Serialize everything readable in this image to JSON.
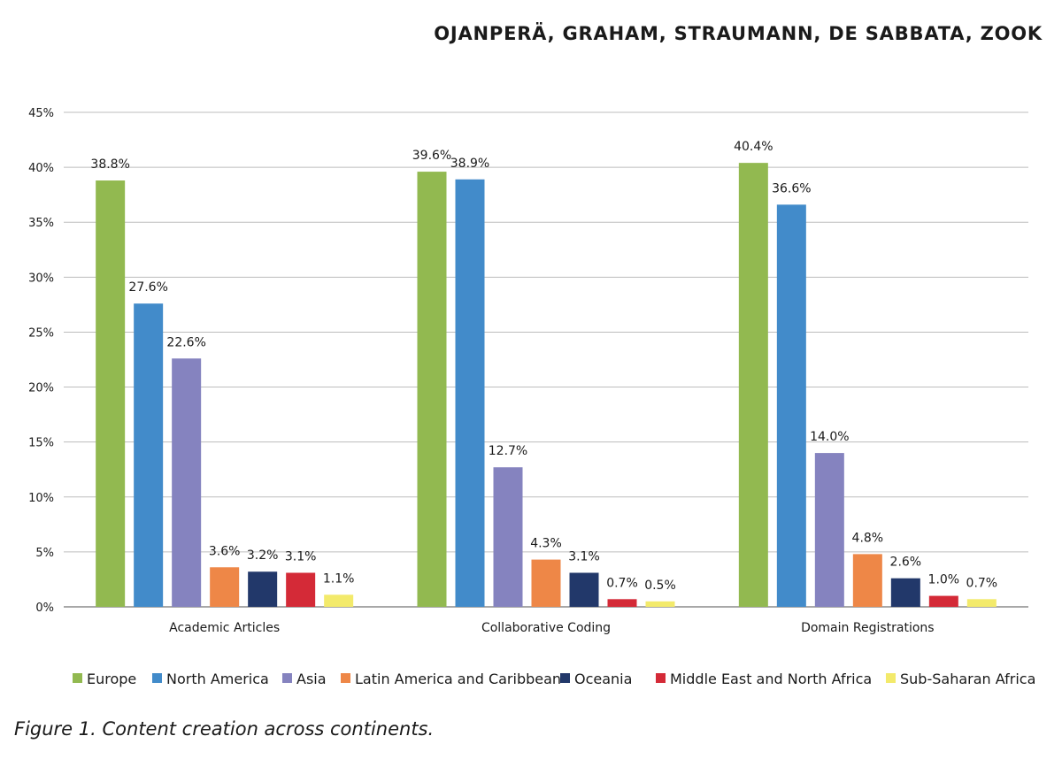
{
  "header": {
    "authors": "OJANPERÄ, GRAHAM, STRAUMANN, DE SABBATA, ZOOK"
  },
  "caption": "Figure 1.  Content creation across continents.",
  "chart_data": {
    "type": "bar",
    "categories": [
      "Academic Articles",
      "Collaborative Coding",
      "Domain Registrations"
    ],
    "y_ticks": [
      "0%",
      "5%",
      "10%",
      "15%",
      "20%",
      "25%",
      "30%",
      "35%",
      "40%",
      "45%"
    ],
    "ylim": [
      0,
      45
    ],
    "grid": true,
    "legend_position": "bottom",
    "series": [
      {
        "name": "Europe",
        "color": "#92b950",
        "values": [
          38.8,
          39.6,
          40.4
        ],
        "labels": [
          "38.8%",
          "39.6%",
          "40.4%"
        ]
      },
      {
        "name": "North America",
        "color": "#428bca",
        "values": [
          27.6,
          38.9,
          36.6
        ],
        "labels": [
          "27.6%",
          "38.9%",
          "36.6%"
        ]
      },
      {
        "name": "Asia",
        "color": "#8583bf",
        "values": [
          22.6,
          12.7,
          14.0
        ],
        "labels": [
          "22.6%",
          "12.7%",
          "14.0%"
        ]
      },
      {
        "name": "Latin America and Caribbean",
        "color": "#ee8747",
        "values": [
          3.6,
          4.3,
          4.8
        ],
        "labels": [
          "3.6%",
          "4.3%",
          "4.8%"
        ]
      },
      {
        "name": "Oceania",
        "color": "#22386a",
        "values": [
          3.2,
          3.1,
          2.6
        ],
        "labels": [
          "3.2%",
          "3.1%",
          "2.6%"
        ]
      },
      {
        "name": "Middle East and North Africa",
        "color": "#d42a37",
        "values": [
          3.1,
          0.7,
          1.0
        ],
        "labels": [
          "3.1%",
          "0.7%",
          "1.0%"
        ]
      },
      {
        "name": "Sub-Saharan Africa",
        "color": "#f3ea6b",
        "values": [
          1.1,
          0.5,
          0.7
        ],
        "labels": [
          "1.1%",
          "0.5%",
          "0.7%"
        ]
      }
    ]
  }
}
